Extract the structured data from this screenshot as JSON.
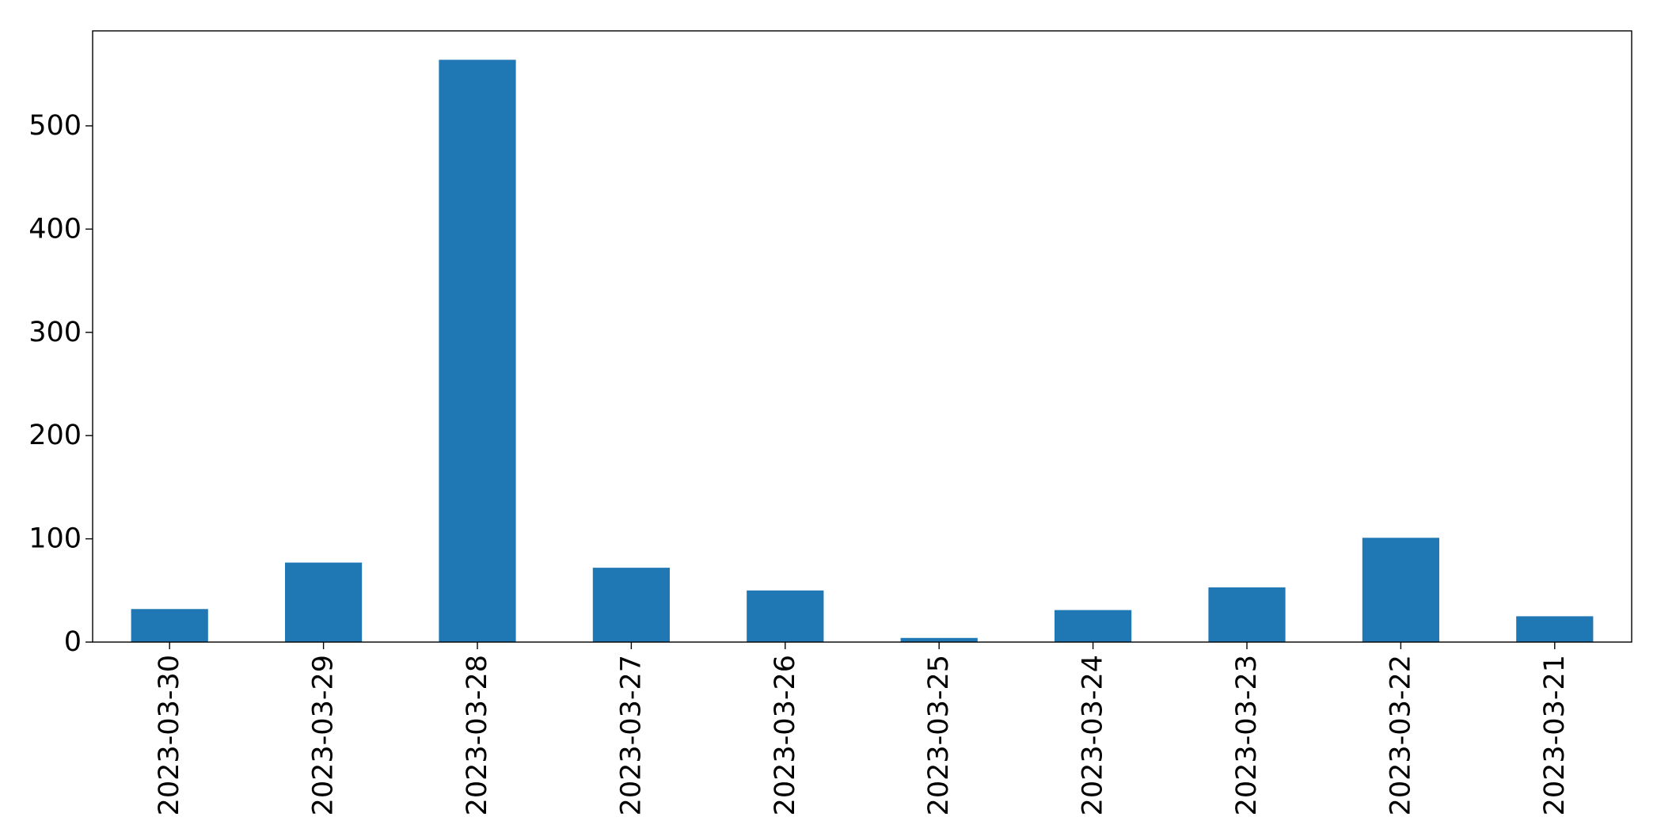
{
  "chart_data": {
    "type": "bar",
    "title": "",
    "xlabel": "",
    "ylabel": "",
    "categories": [
      "2023-03-30",
      "2023-03-29",
      "2023-03-28",
      "2023-03-27",
      "2023-03-26",
      "2023-03-25",
      "2023-03-24",
      "2023-03-23",
      "2023-03-22",
      "2023-03-21"
    ],
    "values": [
      32,
      77,
      564,
      72,
      50,
      4,
      31,
      53,
      101,
      25
    ],
    "ylim": [
      0,
      592
    ],
    "yticks": [
      0,
      100,
      200,
      300,
      400,
      500
    ],
    "grid": false,
    "legend": "none",
    "bar_color": "#1f77b4",
    "x_tick_rotation": "vertical"
  }
}
